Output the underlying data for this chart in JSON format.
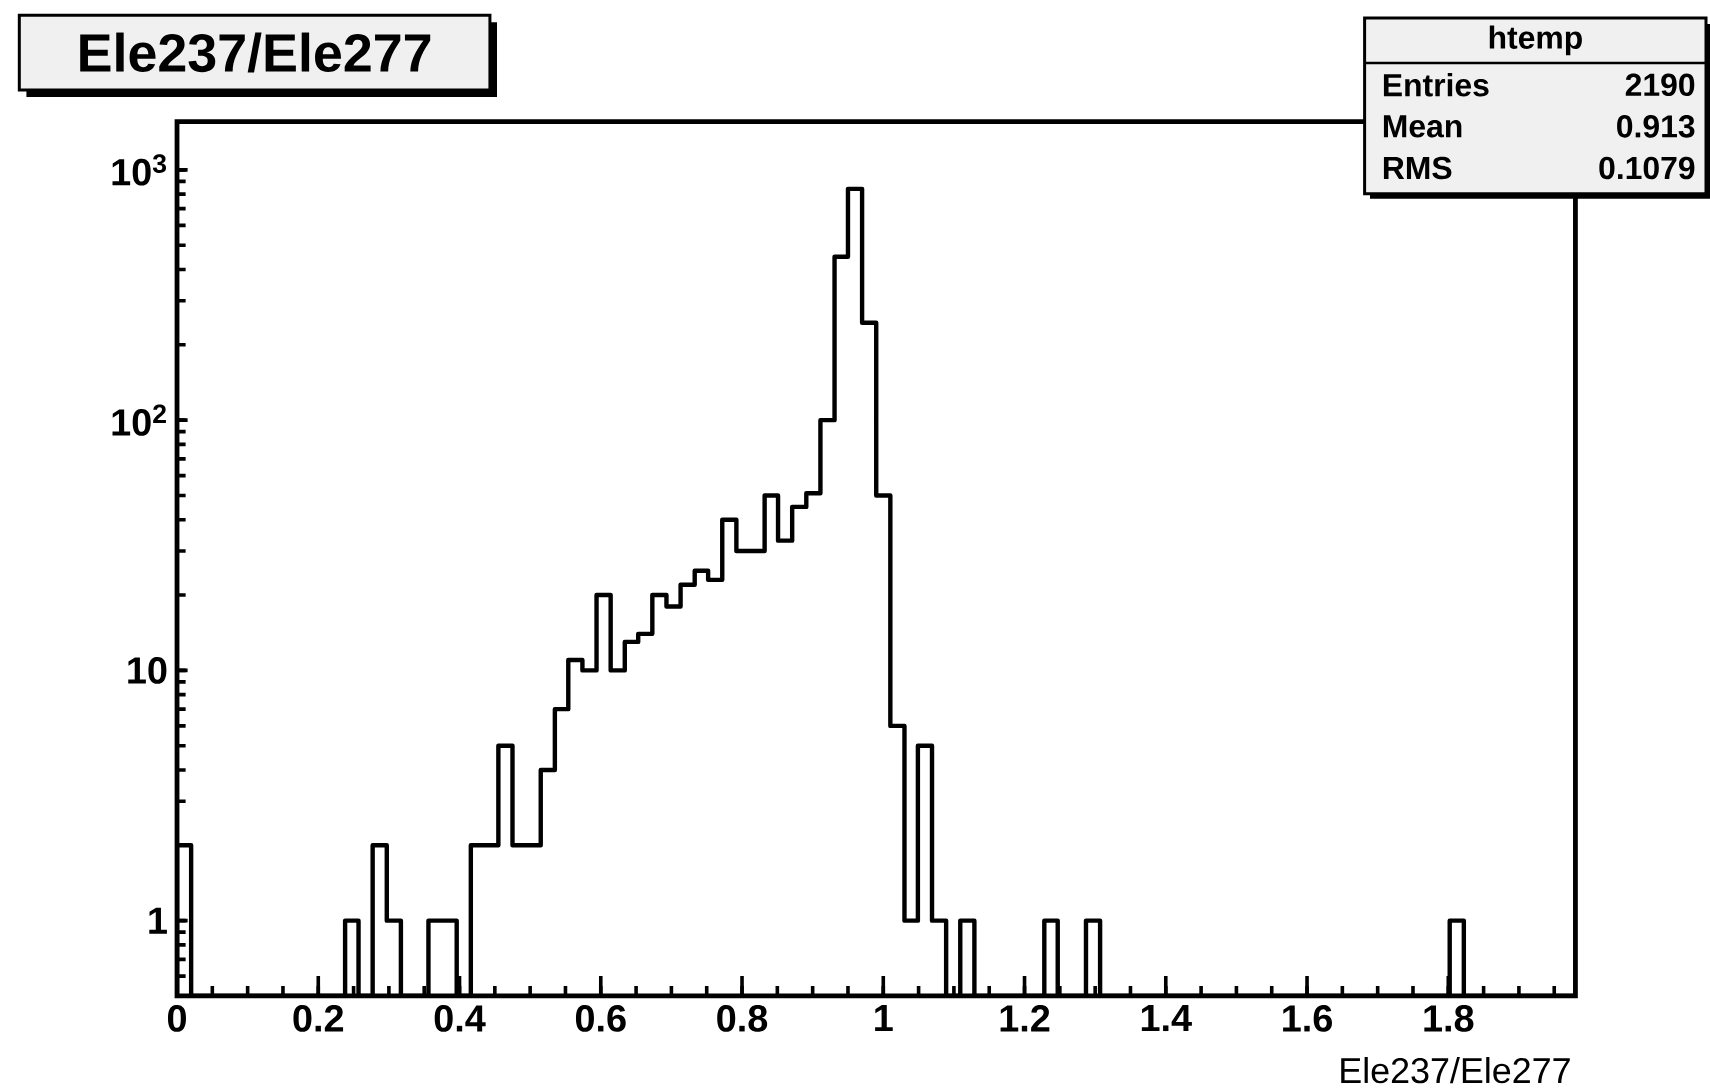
{
  "chart_data": {
    "type": "histogram",
    "title": "Ele237/Ele277",
    "xlabel": "Ele237/Ele277",
    "annotations": [
      "htemp",
      "Entries",
      "2190",
      "Mean",
      "0.913",
      "RMS",
      "0.1079"
    ],
    "bins": [
      0,
      0.02,
      0.04,
      0.059,
      0.079,
      0.099,
      0.119,
      0.139,
      0.158,
      0.178,
      0.198,
      0.218,
      0.238,
      0.257,
      0.277,
      0.297,
      0.317,
      0.337,
      0.356,
      0.376,
      0.396,
      0.416,
      0.436,
      0.455,
      0.475,
      0.495,
      0.515,
      0.535,
      0.554,
      0.574,
      0.594,
      0.614,
      0.634,
      0.653,
      0.673,
      0.693,
      0.713,
      0.733,
      0.752,
      0.772,
      0.792,
      0.812,
      0.832,
      0.851,
      0.871,
      0.891,
      0.911,
      0.931,
      0.95,
      0.97,
      0.99,
      1.01,
      1.03,
      1.049,
      1.069,
      1.089,
      1.109,
      1.129,
      1.148,
      1.168,
      1.188,
      1.208,
      1.228,
      1.247,
      1.267,
      1.287,
      1.307,
      1.327,
      1.346,
      1.366,
      1.386,
      1.406,
      1.426,
      1.445,
      1.465,
      1.485,
      1.505,
      1.525,
      1.544,
      1.564,
      1.584,
      1.604,
      1.624,
      1.643,
      1.663,
      1.683,
      1.703,
      1.723,
      1.742,
      1.762,
      1.782,
      1.802,
      1.822,
      1.841,
      1.861,
      1.881,
      1.901,
      1.921,
      1.94,
      1.96,
      1.98
    ],
    "values": [
      2,
      null,
      null,
      null,
      null,
      null,
      null,
      null,
      null,
      null,
      null,
      null,
      1,
      null,
      2,
      1,
      null,
      null,
      1,
      1,
      null,
      2,
      2,
      5,
      2,
      2,
      4,
      7,
      11,
      10,
      20,
      10,
      13,
      14,
      20,
      18,
      22,
      25,
      23,
      40,
      30,
      30,
      50,
      33,
      45,
      51,
      100,
      450,
      840,
      245,
      50,
      6,
      1,
      5,
      1,
      null,
      1,
      null,
      null,
      null,
      null,
      null,
      1,
      null,
      null,
      1,
      null,
      null,
      null,
      null,
      null,
      null,
      null,
      null,
      null,
      null,
      null,
      null,
      null,
      null,
      null,
      null,
      null,
      null,
      null,
      null,
      null,
      null,
      null,
      null,
      null,
      1,
      null,
      null,
      null,
      null,
      null,
      null,
      null,
      null
    ],
    "color": "#000000",
    "xlim": [
      0,
      1.98
    ],
    "ylim": [
      0.5,
      1560
    ],
    "log": true,
    "xticks": [
      0,
      {
        "value": 0.05,
        "label": null
      },
      {
        "value": 0.1,
        "label": null
      },
      {
        "value": 0.15,
        "label": null
      },
      0.2,
      {
        "value": 0.25,
        "label": null
      },
      {
        "value": 0.3,
        "label": null
      },
      {
        "value": 0.35,
        "label": null
      },
      0.4,
      {
        "value": 0.45,
        "label": null
      },
      {
        "value": 0.5,
        "label": null
      },
      {
        "value": 0.55,
        "label": null
      },
      0.6,
      {
        "value": 0.65,
        "label": null
      },
      {
        "value": 0.7,
        "label": null
      },
      {
        "value": 0.75,
        "label": null
      },
      0.8,
      {
        "value": 0.85,
        "label": null
      },
      {
        "value": 0.9,
        "label": null
      },
      {
        "value": 0.95,
        "label": null
      },
      1,
      {
        "value": 1.05,
        "label": null
      },
      {
        "value": 1.1,
        "label": null
      },
      {
        "value": 1.15,
        "label": null
      },
      1.2,
      {
        "value": 1.25,
        "label": null
      },
      {
        "value": 1.3,
        "label": null
      },
      {
        "value": 1.35,
        "label": null
      },
      1.4,
      {
        "value": 1.45,
        "label": null
      },
      {
        "value": 1.5,
        "label": null
      },
      {
        "value": 1.55,
        "label": null
      },
      1.6,
      {
        "value": 1.65,
        "label": null
      },
      {
        "value": 1.7,
        "label": null
      },
      {
        "value": 1.75,
        "label": null
      },
      1.8,
      {
        "value": 1.85,
        "label": null
      },
      {
        "value": 1.9,
        "label": null
      },
      {
        "value": 1.95,
        "label": null
      }
    ],
    "yticks": [
      {
        "value": 0.6,
        "label": null
      },
      {
        "value": 0.7,
        "label": null
      },
      {
        "value": 0.8,
        "label": null
      },
      {
        "value": 0.9,
        "label": null
      },
      1,
      {
        "value": 2,
        "label": null
      },
      {
        "value": 3,
        "label": null
      },
      {
        "value": 4,
        "label": null
      },
      {
        "value": 5,
        "label": null
      },
      {
        "value": 6,
        "label": null
      },
      {
        "value": 7,
        "label": null
      },
      {
        "value": 8,
        "label": null
      },
      {
        "value": 9,
        "label": null
      },
      10,
      {
        "value": 20,
        "label": null
      },
      {
        "value": 30,
        "label": null
      },
      {
        "value": 40,
        "label": null
      },
      {
        "value": 50,
        "label": null
      },
      {
        "value": 60,
        "label": null
      },
      {
        "value": 70,
        "label": null
      },
      {
        "value": 80,
        "label": null
      },
      {
        "value": 90,
        "label": null
      },
      {
        "value": 100,
        "label": "10$^{2}$"
      },
      {
        "value": 200,
        "label": null
      },
      {
        "value": 300,
        "label": null
      },
      {
        "value": 400,
        "label": null
      },
      {
        "value": 500,
        "label": null
      },
      {
        "value": 600,
        "label": null
      },
      {
        "value": 700,
        "label": null
      },
      {
        "value": 800,
        "label": null
      },
      {
        "value": 900,
        "label": null
      },
      {
        "value": 1000,
        "label": "10$^{3}$"
      }
    ]
  }
}
